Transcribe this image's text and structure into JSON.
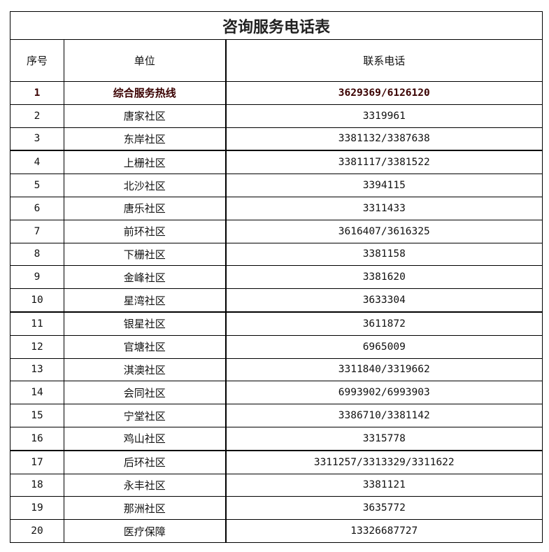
{
  "title": "咨询服务电话表",
  "headers": {
    "index": "序号",
    "unit": "单位",
    "phone": "联系电话"
  },
  "rows": [
    {
      "index": "1",
      "unit": "综合服务热线",
      "phone": "3629369/6126120",
      "highlight": true
    },
    {
      "index": "2",
      "unit": "唐家社区",
      "phone": "3319961"
    },
    {
      "index": "3",
      "unit": "东岸社区",
      "phone": "3381132/3387638"
    },
    {
      "index": "4",
      "unit": "上栅社区",
      "phone": "3381117/3381522"
    },
    {
      "index": "5",
      "unit": "北沙社区",
      "phone": "3394115"
    },
    {
      "index": "6",
      "unit": "唐乐社区",
      "phone": "3311433"
    },
    {
      "index": "7",
      "unit": "前环社区",
      "phone": "3616407/3616325"
    },
    {
      "index": "8",
      "unit": "下栅社区",
      "phone": "3381158"
    },
    {
      "index": "9",
      "unit": "金峰社区",
      "phone": "3381620"
    },
    {
      "index": "10",
      "unit": "星湾社区",
      "phone": "3633304"
    },
    {
      "index": "11",
      "unit": "银星社区",
      "phone": "3611872"
    },
    {
      "index": "12",
      "unit": "官塘社区",
      "phone": "6965009"
    },
    {
      "index": "13",
      "unit": "淇澳社区",
      "phone": "3311840/3319662"
    },
    {
      "index": "14",
      "unit": "会同社区",
      "phone": "6993902/6993903"
    },
    {
      "index": "15",
      "unit": "宁堂社区",
      "phone": "3386710/3381142"
    },
    {
      "index": "16",
      "unit": "鸡山社区",
      "phone": "3315778"
    },
    {
      "index": "17",
      "unit": "后环社区",
      "phone": "3311257/3313329/3311622"
    },
    {
      "index": "18",
      "unit": "永丰社区",
      "phone": "3381121"
    },
    {
      "index": "19",
      "unit": "那洲社区",
      "phone": "3635772"
    },
    {
      "index": "20",
      "unit": "医疗保障",
      "phone": "13326687727"
    }
  ]
}
